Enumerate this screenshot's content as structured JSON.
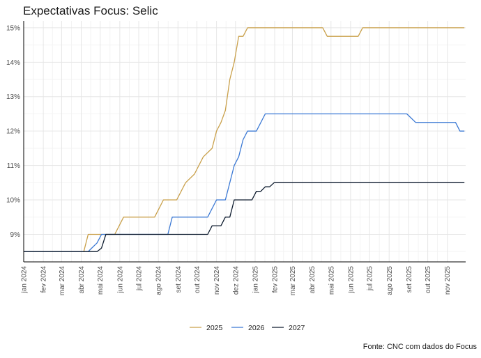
{
  "chart_data": {
    "type": "line",
    "title": "Expectativas Focus: Selic",
    "xlabel": "",
    "ylabel": "",
    "y_unit": "%",
    "ylim": [
      8.2,
      15.2
    ],
    "y_ticks": [
      9,
      10,
      11,
      12,
      13,
      14,
      15
    ],
    "y_tick_labels": [
      "9%",
      "10%",
      "11%",
      "12%",
      "13%",
      "14%",
      "15%"
    ],
    "xlim": [
      "2024-01-01",
      "2025-11-30"
    ],
    "x_ticks": [
      "2024-01-01",
      "2024-02-01",
      "2024-03-01",
      "2024-04-01",
      "2024-05-01",
      "2024-06-01",
      "2024-07-01",
      "2024-08-01",
      "2024-09-01",
      "2024-10-01",
      "2024-11-01",
      "2024-12-01",
      "2025-01-01",
      "2025-02-01",
      "2025-03-01",
      "2025-04-01",
      "2025-05-01",
      "2025-06-01",
      "2025-07-01",
      "2025-08-01",
      "2025-09-01",
      "2025-10-01",
      "2025-11-01"
    ],
    "x_tick_labels": [
      "jan 2024",
      "fev 2024",
      "mar 2024",
      "abr 2024",
      "mai 2024",
      "jun 2024",
      "jul 2024",
      "ago 2024",
      "set 2024",
      "out 2024",
      "nov 2024",
      "dez 2024",
      "jan 2025",
      "fev 2025",
      "mar 2025",
      "abr 2025",
      "mai 2025",
      "jun 2025",
      "jul 2025",
      "ago 2025",
      "set 2025",
      "out 2025",
      "nov 2025"
    ],
    "grid": true,
    "legend_position": "bottom",
    "source": "Fonte: CNC com dados do Focus",
    "series": [
      {
        "name": "2025",
        "color": "#c9a04a",
        "points": [
          [
            "2024-01-01",
            8.5
          ],
          [
            "2024-04-05",
            8.5
          ],
          [
            "2024-04-12",
            9.0
          ],
          [
            "2024-05-24",
            9.0
          ],
          [
            "2024-05-31",
            9.25
          ],
          [
            "2024-06-07",
            9.5
          ],
          [
            "2024-07-26",
            9.5
          ],
          [
            "2024-08-02",
            9.75
          ],
          [
            "2024-08-09",
            10.0
          ],
          [
            "2024-08-30",
            10.0
          ],
          [
            "2024-09-13",
            10.5
          ],
          [
            "2024-09-27",
            10.75
          ],
          [
            "2024-10-11",
            11.25
          ],
          [
            "2024-10-25",
            11.5
          ],
          [
            "2024-11-01",
            12.0
          ],
          [
            "2024-11-08",
            12.25
          ],
          [
            "2024-11-15",
            12.6
          ],
          [
            "2024-11-22",
            13.5
          ],
          [
            "2024-11-29",
            14.0
          ],
          [
            "2024-12-06",
            14.75
          ],
          [
            "2024-12-13",
            14.75
          ],
          [
            "2024-12-20",
            15.0
          ],
          [
            "2025-04-18",
            15.0
          ],
          [
            "2025-04-25",
            14.75
          ],
          [
            "2025-06-13",
            14.75
          ],
          [
            "2025-06-20",
            15.0
          ],
          [
            "2025-11-28",
            15.0
          ]
        ]
      },
      {
        "name": "2026",
        "color": "#3a78d4",
        "points": [
          [
            "2024-01-01",
            8.5
          ],
          [
            "2024-04-12",
            8.5
          ],
          [
            "2024-04-26",
            8.75
          ],
          [
            "2024-05-03",
            9.0
          ],
          [
            "2024-08-16",
            9.0
          ],
          [
            "2024-08-23",
            9.5
          ],
          [
            "2024-10-18",
            9.5
          ],
          [
            "2024-11-01",
            10.0
          ],
          [
            "2024-11-15",
            10.0
          ],
          [
            "2024-11-29",
            11.0
          ],
          [
            "2024-12-06",
            11.25
          ],
          [
            "2024-12-13",
            11.75
          ],
          [
            "2024-12-20",
            12.0
          ],
          [
            "2025-01-03",
            12.0
          ],
          [
            "2025-01-17",
            12.5
          ],
          [
            "2025-08-29",
            12.5
          ],
          [
            "2025-09-12",
            12.25
          ],
          [
            "2025-11-14",
            12.25
          ],
          [
            "2025-11-21",
            12.0
          ],
          [
            "2025-11-28",
            12.0
          ]
        ]
      },
      {
        "name": "2027",
        "color": "#0d1b2e",
        "points": [
          [
            "2024-01-01",
            8.5
          ],
          [
            "2024-04-26",
            8.5
          ],
          [
            "2024-05-03",
            8.6
          ],
          [
            "2024-05-10",
            9.0
          ],
          [
            "2024-10-18",
            9.0
          ],
          [
            "2024-10-25",
            9.25
          ],
          [
            "2024-11-08",
            9.25
          ],
          [
            "2024-11-15",
            9.5
          ],
          [
            "2024-11-22",
            9.5
          ],
          [
            "2024-11-29",
            10.0
          ],
          [
            "2024-12-27",
            10.0
          ],
          [
            "2025-01-03",
            10.25
          ],
          [
            "2025-01-10",
            10.25
          ],
          [
            "2025-01-17",
            10.38
          ],
          [
            "2025-01-24",
            10.38
          ],
          [
            "2025-01-31",
            10.5
          ],
          [
            "2025-11-28",
            10.5
          ]
        ]
      }
    ]
  }
}
